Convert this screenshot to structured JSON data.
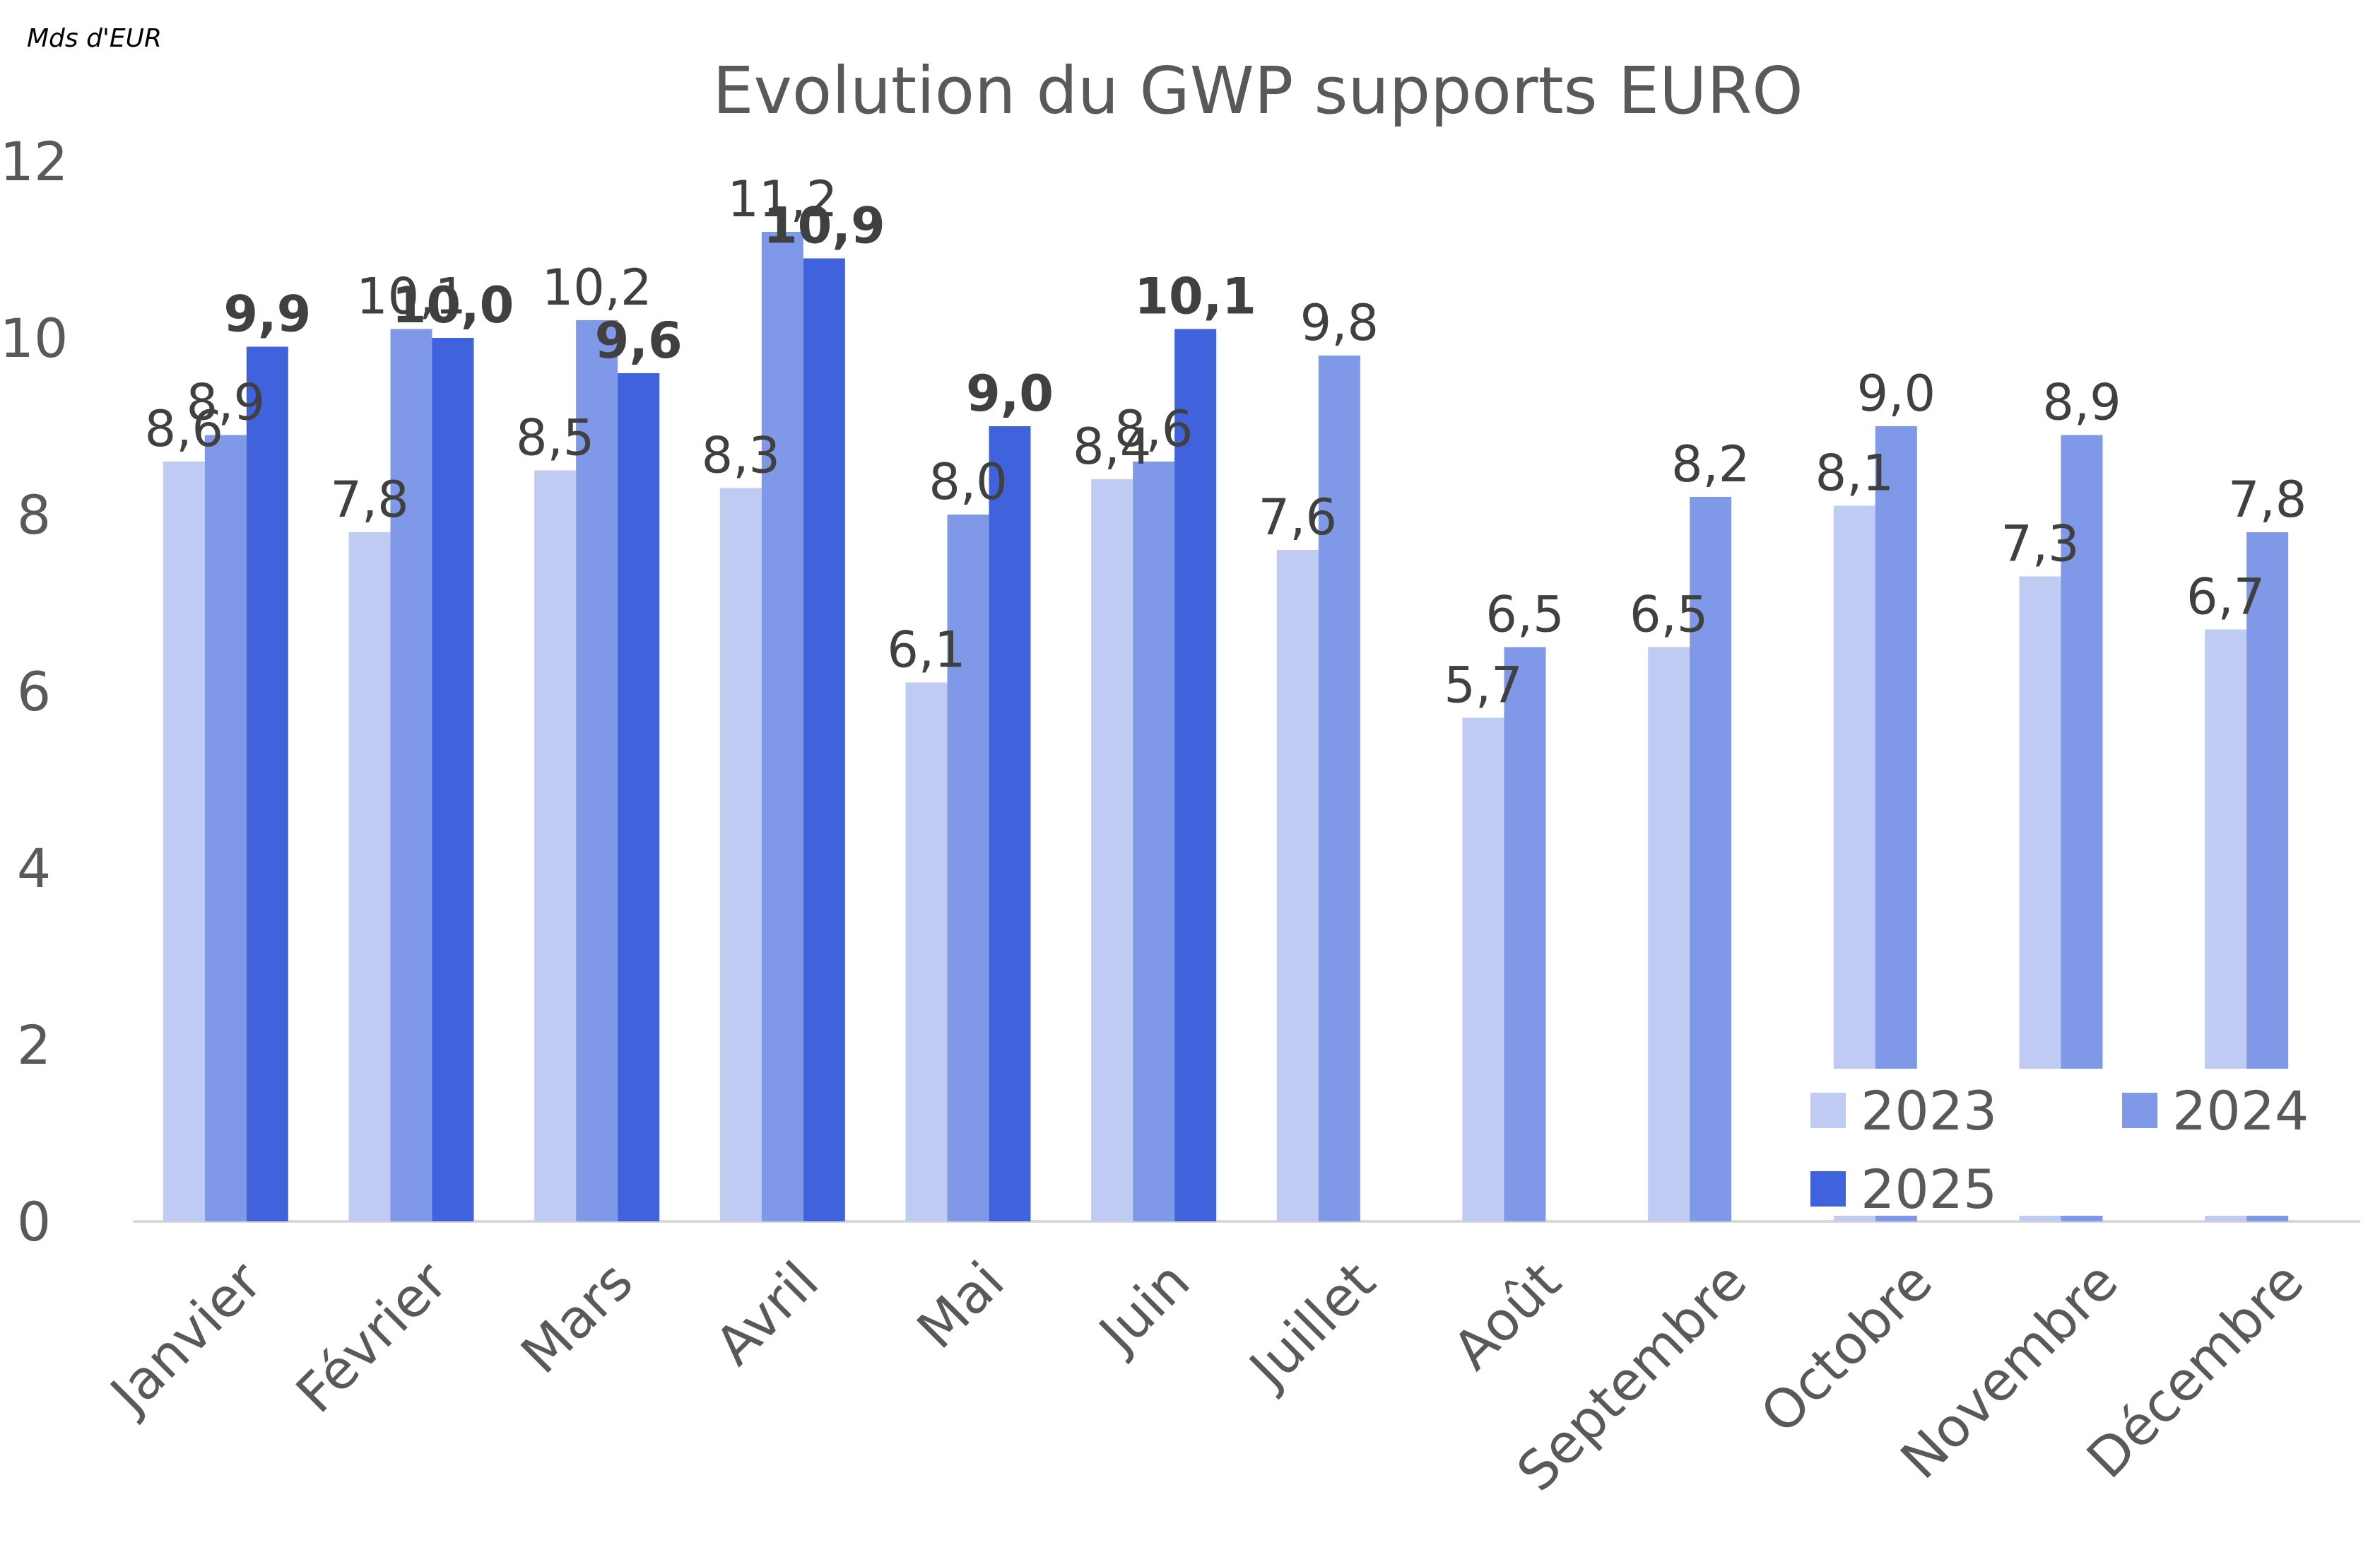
{
  "unit_label": "Mds d'EUR",
  "chart_data": {
    "type": "bar",
    "title": "Evolution du GWP supports EURO",
    "xlabel": "",
    "ylabel": "",
    "ylim": [
      0,
      12
    ],
    "yticks": [
      0,
      2,
      4,
      6,
      8,
      10,
      12
    ],
    "grid": false,
    "legend_position": "bottom-right",
    "categories": [
      "Janvier",
      "Février",
      "Mars",
      "Avril",
      "Mai",
      "Juin",
      "Juillet",
      "Août",
      "Septembre",
      "Octobre",
      "Novembre",
      "Décembre"
    ],
    "series": [
      {
        "name": "2023",
        "color": "#c0cbf3",
        "bold_labels": false,
        "values": [
          8.6,
          7.8,
          8.5,
          8.3,
          6.1,
          8.4,
          7.6,
          5.7,
          6.5,
          8.1,
          7.3,
          6.7
        ],
        "labels": [
          "8,6",
          "7,8",
          "8,5",
          "8,3",
          "6,1",
          "8,4",
          "7,6",
          "5,7",
          "6,5",
          "8,1",
          "7,3",
          "6,7"
        ]
      },
      {
        "name": "2024",
        "color": "#7f98e8",
        "bold_labels": false,
        "values": [
          8.9,
          10.1,
          10.2,
          11.2,
          8.0,
          8.6,
          9.8,
          6.5,
          8.2,
          9.0,
          8.9,
          7.8
        ],
        "labels": [
          "8,9",
          "10,1",
          "10,2",
          "11,2",
          "8,0",
          "8,6",
          "9,8",
          "6,5",
          "8,2",
          "9,0",
          "8,9",
          "7,8"
        ]
      },
      {
        "name": "2025",
        "color": "#4063dd",
        "bold_labels": true,
        "values": [
          9.9,
          10.0,
          9.6,
          10.9,
          9.0,
          10.1,
          null,
          null,
          null,
          null,
          null,
          null
        ],
        "labels": [
          "9,9",
          "10,0",
          "9,6",
          "10,9",
          "9,0",
          "10,1",
          null,
          null,
          null,
          null,
          null,
          null
        ]
      }
    ]
  }
}
